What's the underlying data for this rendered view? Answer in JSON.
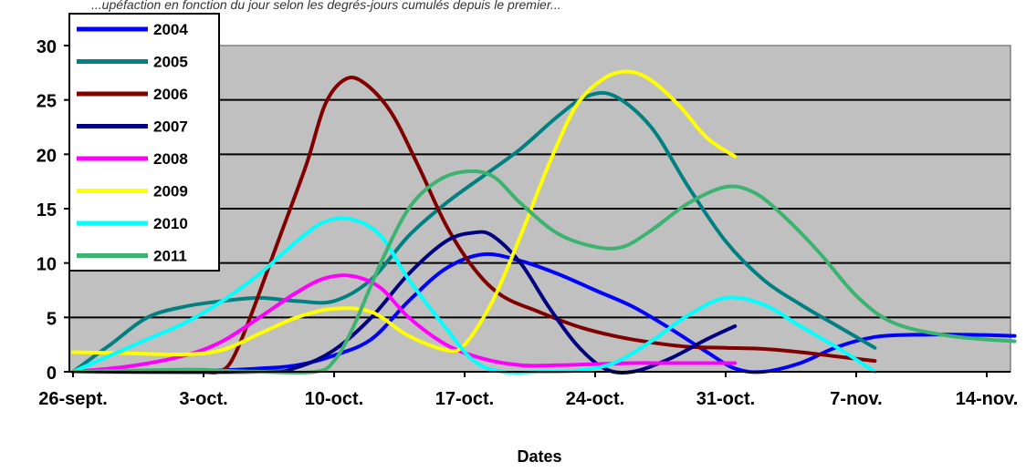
{
  "caption": "...upéfaction en fonction du jour selon les degrés-jours cumulés depuis le premier...",
  "chart_data": {
    "type": "line",
    "xlabel": "Dates",
    "ylabel": "",
    "ylim": [
      0,
      30
    ],
    "yticks": [
      0,
      5,
      10,
      15,
      20,
      25,
      30
    ],
    "xticks": [
      {
        "x": 0,
        "label": "26-sept."
      },
      {
        "x": 7,
        "label": "3-oct."
      },
      {
        "x": 14,
        "label": "10-oct."
      },
      {
        "x": 21,
        "label": "17-oct."
      },
      {
        "x": 28,
        "label": "24-oct."
      },
      {
        "x": 35,
        "label": "31-oct."
      },
      {
        "x": 42,
        "label": "7-nov."
      },
      {
        "x": 49,
        "label": "14-nov."
      }
    ],
    "grid": "horizontal",
    "legend_position": "top-left",
    "background": "#c0c0c0",
    "series": [
      {
        "name": "2004",
        "color": "#0000ff",
        "x": [
          0,
          7,
          10,
          12,
          14,
          16,
          18,
          20,
          22,
          24,
          26,
          28,
          30,
          32,
          34,
          35.5,
          37,
          39,
          41,
          43,
          45,
          48,
          50.5
        ],
        "y": [
          0,
          0.1,
          0.3,
          0.6,
          1.5,
          3,
          6.5,
          9.5,
          10.8,
          10.2,
          9,
          7.5,
          6,
          4,
          1.8,
          0.3,
          0,
          0.8,
          2.3,
          3.2,
          3.4,
          3.4,
          3.3
        ]
      },
      {
        "name": "2005",
        "color": "#008080",
        "x": [
          0,
          2,
          4,
          6,
          8,
          10,
          12,
          14,
          16,
          18,
          20,
          22,
          24,
          26,
          27.5,
          29,
          31,
          33,
          35,
          37,
          39,
          41,
          43
        ],
        "y": [
          0,
          2.5,
          5,
          6,
          6.5,
          6.8,
          6.5,
          6.5,
          8.5,
          12.5,
          15.5,
          18,
          20.5,
          23.5,
          25.3,
          25.4,
          22.5,
          17,
          12,
          8.5,
          6.2,
          4.2,
          2.2
        ]
      },
      {
        "name": "2006",
        "color": "#800000",
        "x": [
          7,
          7.8,
          8.5,
          9.5,
          11,
          12.5,
          13.5,
          14.5,
          15.5,
          17,
          18.5,
          20,
          21.5,
          23,
          25,
          27,
          29,
          31,
          33,
          35,
          37,
          39,
          41,
          43
        ],
        "y": [
          0,
          0,
          1,
          5,
          12,
          19,
          24.5,
          26.8,
          26.7,
          24,
          19,
          13.5,
          9.5,
          7,
          5.5,
          4.2,
          3.3,
          2.7,
          2.3,
          2.2,
          2.1,
          1.8,
          1.4,
          1
        ]
      },
      {
        "name": "2007",
        "color": "#000080",
        "x": [
          0,
          10,
          12,
          14,
          16,
          18,
          20,
          21.5,
          22.5,
          24,
          25.5,
          27,
          28.5,
          30,
          32,
          34,
          35.5
        ],
        "y": [
          0,
          0,
          0.4,
          2,
          5,
          9,
          12,
          12.8,
          12.5,
          10,
          6,
          2.5,
          0.3,
          0,
          1.2,
          3,
          4.2
        ]
      },
      {
        "name": "2008",
        "color": "#ff00ff",
        "x": [
          0,
          3,
          6,
          8,
          10,
          12,
          13.5,
          15,
          16.5,
          18,
          20,
          22,
          24,
          26,
          28,
          30,
          32,
          34,
          35.5
        ],
        "y": [
          0,
          0.5,
          1.5,
          2.8,
          5,
          7.3,
          8.6,
          8.8,
          7.7,
          5,
          2.5,
          1.2,
          0.6,
          0.6,
          0.7,
          0.8,
          0.8,
          0.8,
          0.8
        ]
      },
      {
        "name": "2009",
        "color": "#ffff00",
        "x": [
          0,
          3,
          6,
          8,
          10,
          12,
          14,
          16,
          18,
          20,
          21,
          22.5,
          24,
          25.5,
          27,
          28.5,
          29.8,
          31,
          32.5,
          34,
          35.5
        ],
        "y": [
          1.8,
          1.7,
          1.6,
          2,
          3.5,
          5,
          5.8,
          5.5,
          3.3,
          2,
          2.5,
          6.5,
          12.5,
          19,
          24.5,
          27,
          27.6,
          26.8,
          24.5,
          21.5,
          19.8
        ]
      },
      {
        "name": "2010",
        "color": "#00ffff",
        "x": [
          0,
          2,
          4,
          6,
          8,
          10,
          12,
          13.5,
          15,
          16.5,
          18,
          20,
          21.5,
          23,
          25,
          27,
          29,
          31,
          33,
          35,
          37,
          39,
          41,
          43
        ],
        "y": [
          0,
          1.5,
          3,
          4.5,
          6.5,
          9,
          12,
          13.8,
          14,
          12.5,
          8.5,
          4,
          1,
          0,
          0,
          0.1,
          0.8,
          2.8,
          5.2,
          6.8,
          6.2,
          4.2,
          2.2,
          0
        ]
      },
      {
        "name": "2011",
        "color": "#3cb371",
        "x": [
          0,
          6,
          8,
          10,
          13,
          14,
          15,
          16.5,
          18,
          19.5,
          21,
          22.5,
          24,
          26,
          28,
          29.5,
          31,
          33,
          35,
          36.5,
          38,
          40,
          42,
          44,
          47,
          50.5
        ],
        "y": [
          0,
          0.2,
          0.1,
          0,
          0,
          1,
          4,
          10,
          15,
          17.5,
          18.4,
          18,
          15.5,
          12.7,
          11.5,
          11.5,
          13,
          15.5,
          17,
          16.5,
          14.5,
          11,
          7,
          4.5,
          3.3,
          2.8
        ]
      }
    ]
  }
}
